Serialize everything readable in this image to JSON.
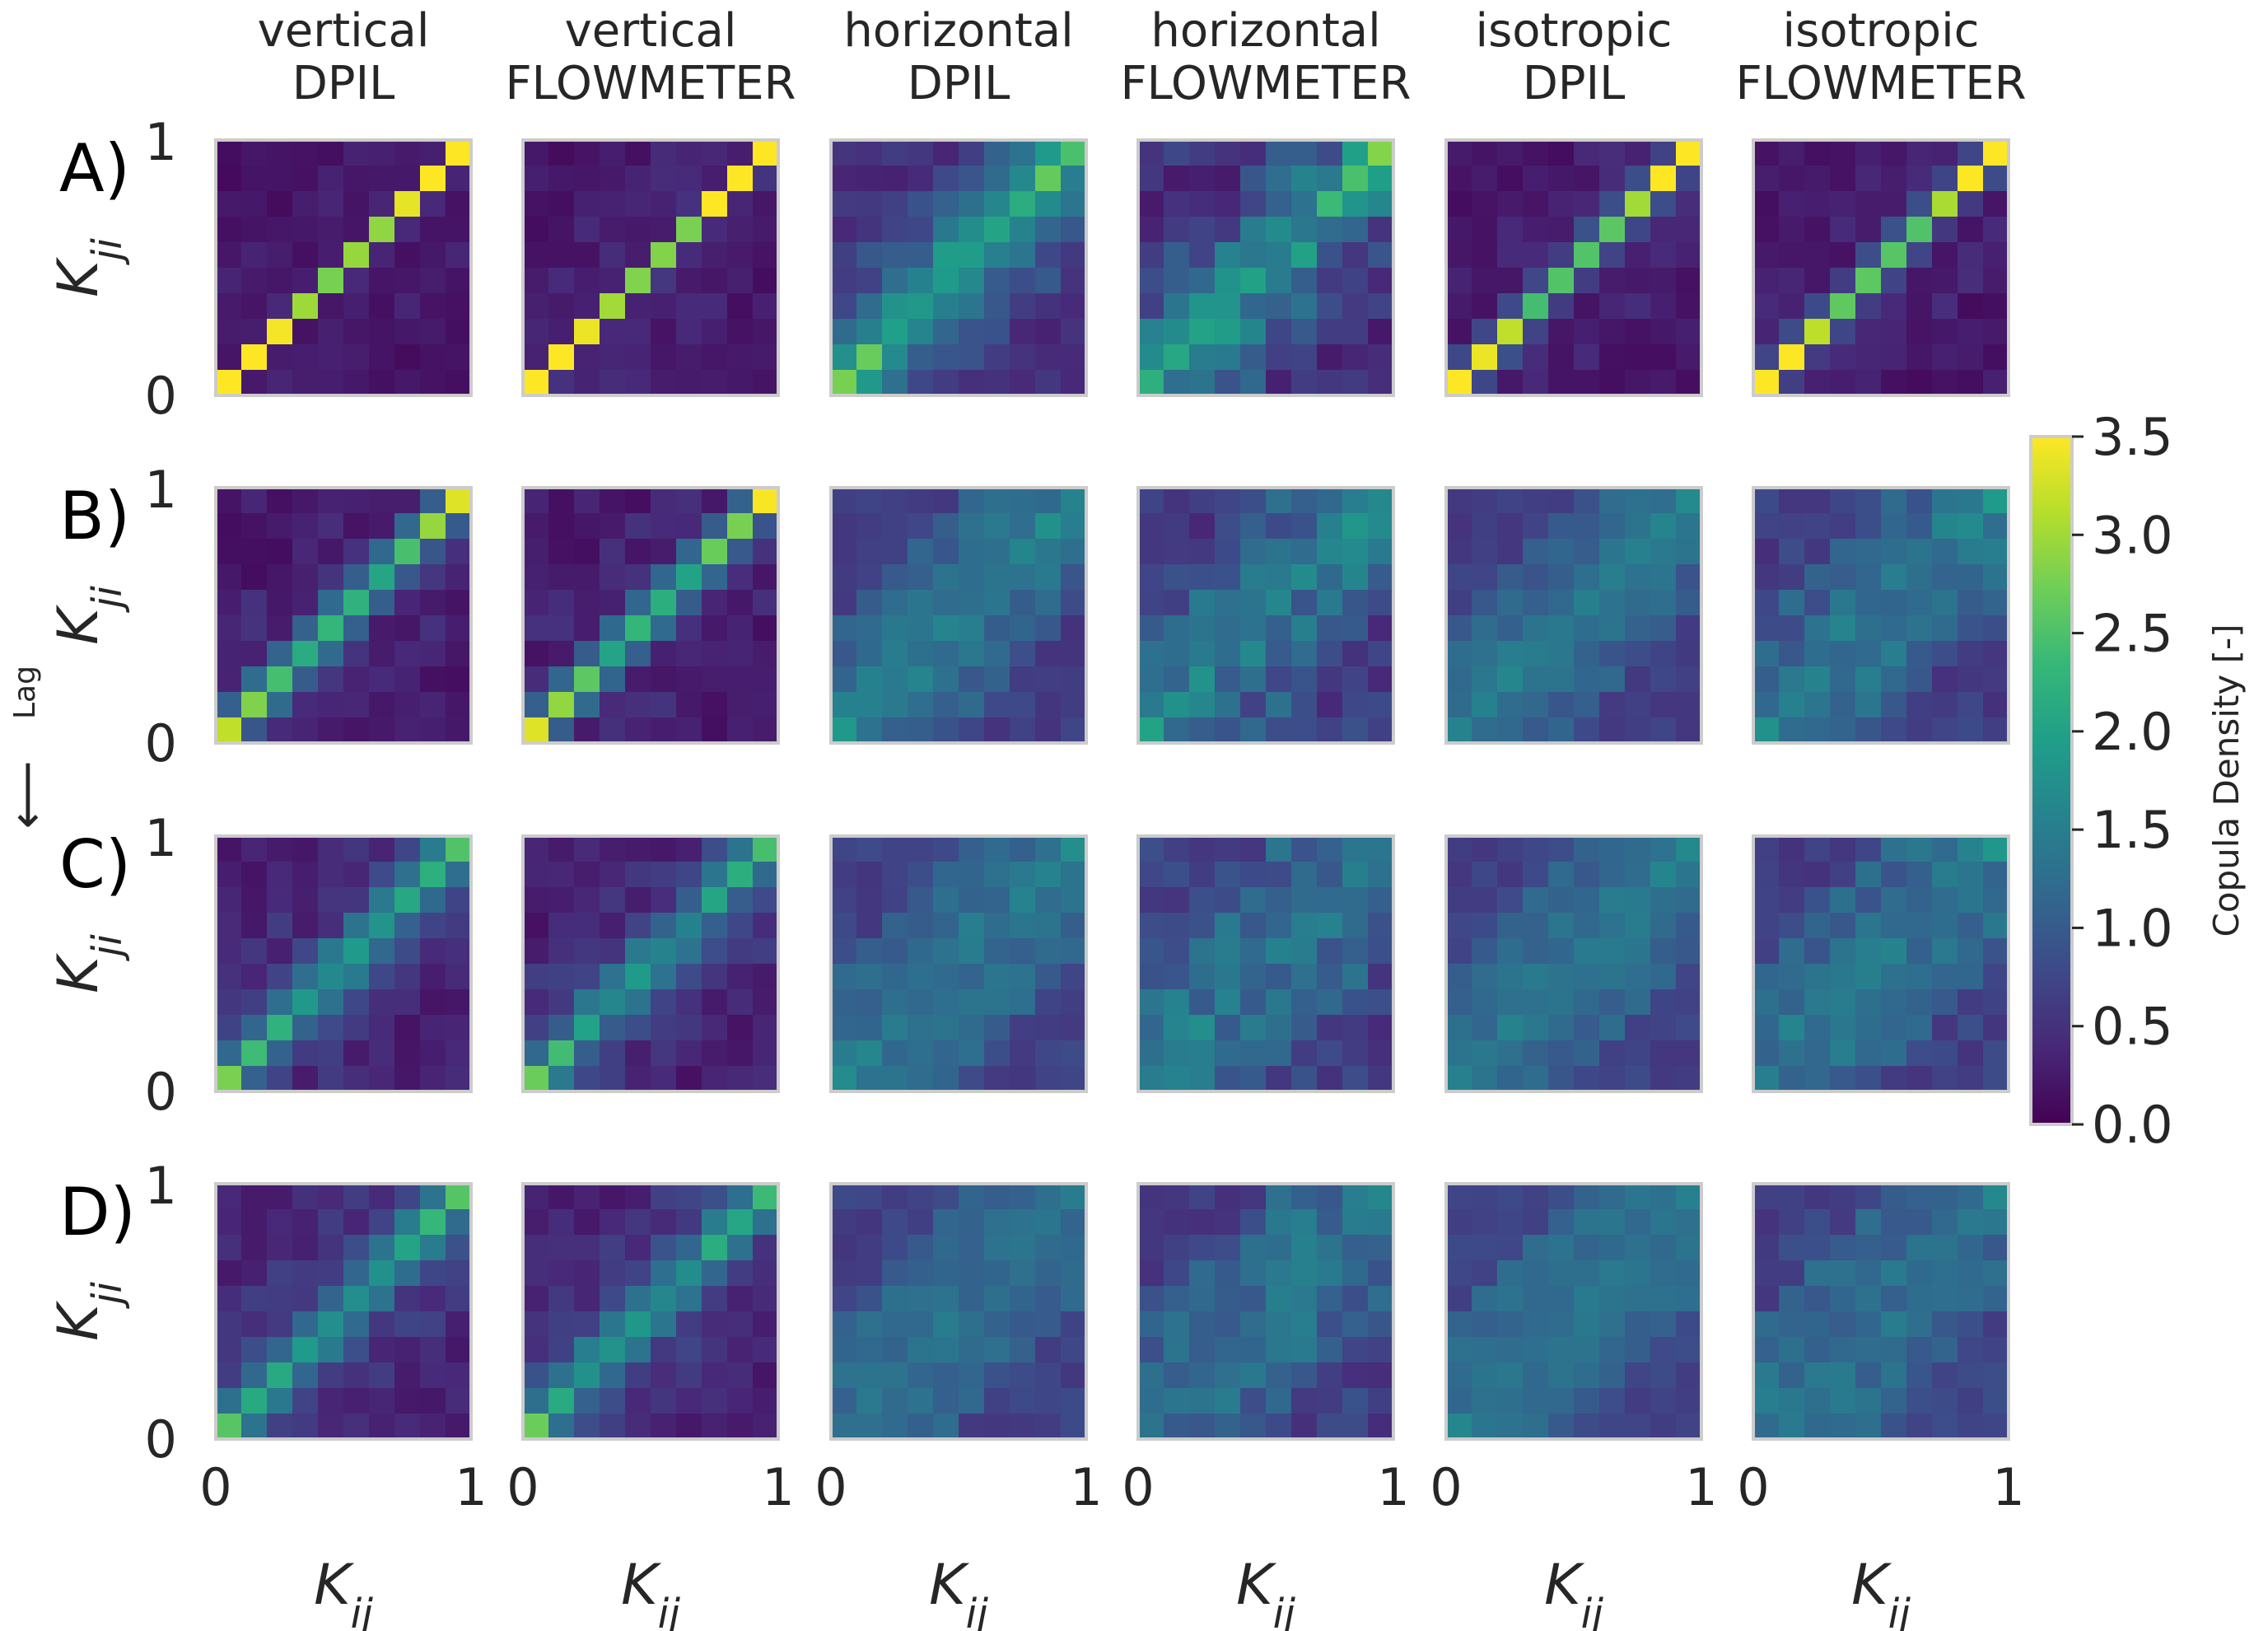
{
  "chart_data": {
    "type": "heatmap",
    "columns": [
      {
        "line1": "vertical",
        "line2": "DPIL"
      },
      {
        "line1": "vertical",
        "line2": "FLOWMETER"
      },
      {
        "line1": "horizontal",
        "line2": "DPIL"
      },
      {
        "line1": "horizontal",
        "line2": "FLOWMETER"
      },
      {
        "line1": "isotropic",
        "line2": "DPIL"
      },
      {
        "line1": "isotropic",
        "line2": "FLOWMETER"
      }
    ],
    "rows": [
      "A)",
      "B)",
      "C)",
      "D)"
    ],
    "xlabel": "K_ij",
    "ylabel": "K_ji",
    "x_ticks": [
      "0",
      "1"
    ],
    "y_ticks": [
      "0",
      "1"
    ],
    "lag_label": "Lag",
    "lag_arrow": "⟵",
    "grid_bins": 10,
    "colorbar": {
      "label": "Copula Density [-]",
      "min": 0.0,
      "max": 3.5,
      "ticks": [
        "0.0",
        "0.5",
        "1.0",
        "1.5",
        "2.0",
        "2.5",
        "3.0",
        "3.5"
      ],
      "colormap": "viridis",
      "stops": [
        "#440154",
        "#482878",
        "#3e4989",
        "#31688e",
        "#26828e",
        "#1f9e89",
        "#35b779",
        "#6ece58",
        "#b5de2b",
        "#fde725"
      ]
    },
    "panel_params": [
      [
        {
          "sigma": 0.35,
          "peak": 3.5,
          "base": 0.25,
          "noise": 0.12
        },
        {
          "sigma": 0.4,
          "peak": 3.5,
          "base": 0.3,
          "noise": 0.15
        },
        {
          "sigma": 1.6,
          "peak": 1.6,
          "base": 0.7,
          "noise": 0.25
        },
        {
          "sigma": 1.6,
          "peak": 1.4,
          "base": 0.7,
          "noise": 0.45
        },
        {
          "sigma": 0.55,
          "peak": 3.0,
          "base": 0.3,
          "noise": 0.15
        },
        {
          "sigma": 0.55,
          "peak": 3.0,
          "base": 0.3,
          "noise": 0.15
        }
      ],
      [
        {
          "sigma": 0.75,
          "peak": 2.4,
          "base": 0.35,
          "noise": 0.18
        },
        {
          "sigma": 0.75,
          "peak": 2.4,
          "base": 0.35,
          "noise": 0.18
        },
        {
          "sigma": 2.2,
          "peak": 0.7,
          "base": 0.9,
          "noise": 0.22
        },
        {
          "sigma": 2.2,
          "peak": 0.6,
          "base": 0.9,
          "noise": 0.4
        },
        {
          "sigma": 2.2,
          "peak": 0.6,
          "base": 0.9,
          "noise": 0.18
        },
        {
          "sigma": 2.2,
          "peak": 0.6,
          "base": 0.9,
          "noise": 0.3
        }
      ],
      [
        {
          "sigma": 1.0,
          "peak": 1.8,
          "base": 0.45,
          "noise": 0.2
        },
        {
          "sigma": 1.0,
          "peak": 1.7,
          "base": 0.45,
          "noise": 0.22
        },
        {
          "sigma": 2.6,
          "peak": 0.5,
          "base": 0.95,
          "noise": 0.2
        },
        {
          "sigma": 2.6,
          "peak": 0.5,
          "base": 0.95,
          "noise": 0.35
        },
        {
          "sigma": 2.6,
          "peak": 0.5,
          "base": 0.95,
          "noise": 0.18
        },
        {
          "sigma": 2.6,
          "peak": 0.5,
          "base": 0.95,
          "noise": 0.28
        }
      ],
      [
        {
          "sigma": 1.1,
          "peak": 1.6,
          "base": 0.5,
          "noise": 0.2
        },
        {
          "sigma": 1.1,
          "peak": 1.6,
          "base": 0.5,
          "noise": 0.22
        },
        {
          "sigma": 3.0,
          "peak": 0.4,
          "base": 0.95,
          "noise": 0.2
        },
        {
          "sigma": 3.0,
          "peak": 0.4,
          "base": 0.95,
          "noise": 0.32
        },
        {
          "sigma": 3.0,
          "peak": 0.4,
          "base": 1.0,
          "noise": 0.15
        },
        {
          "sigma": 3.0,
          "peak": 0.4,
          "base": 0.95,
          "noise": 0.25
        }
      ]
    ]
  }
}
